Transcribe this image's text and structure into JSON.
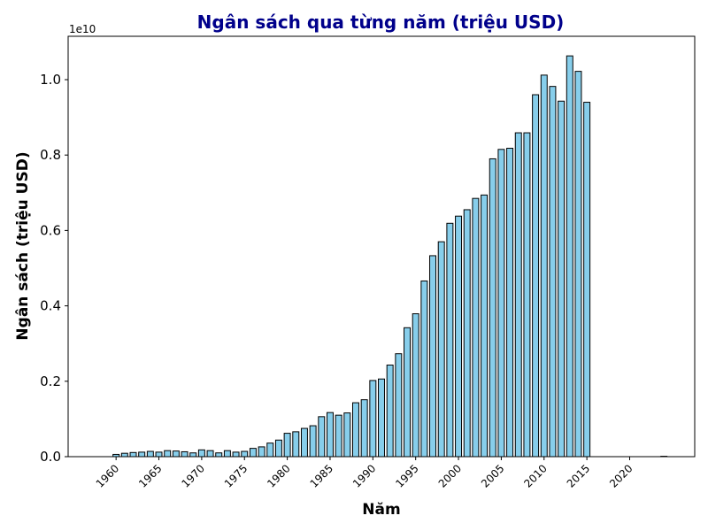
{
  "chart_data": {
    "type": "bar",
    "title": "Ngân sách qua từng năm (triệu USD)",
    "xlabel": "Năm",
    "ylabel": "Ngân sách (triệu USD)",
    "y_offset_label": "1e10",
    "xlim": [
      1954.4,
      2027.6
    ],
    "ylim": [
      0,
      11150000000.0
    ],
    "x_ticks": [
      1960,
      1965,
      1970,
      1975,
      1980,
      1985,
      1990,
      1995,
      2000,
      2005,
      2010,
      2015,
      2020
    ],
    "y_ticks": [
      0,
      2000000000.0,
      4000000000.0,
      6000000000.0,
      8000000000.0,
      10000000000.0
    ],
    "y_tick_labels": [
      "0.0",
      "0.2",
      "0.4",
      "0.6",
      "0.8",
      "1.0"
    ],
    "bar_color": "#87ceeb",
    "edge_color": "#000000",
    "grid": false,
    "x": [
      1960,
      1961,
      1962,
      1963,
      1964,
      1965,
      1966,
      1967,
      1968,
      1969,
      1970,
      1971,
      1972,
      1973,
      1974,
      1975,
      1976,
      1977,
      1978,
      1979,
      1980,
      1981,
      1982,
      1983,
      1984,
      1985,
      1986,
      1987,
      1988,
      1989,
      1990,
      1991,
      1992,
      1993,
      1994,
      1995,
      1996,
      1997,
      1998,
      1999,
      2000,
      2001,
      2002,
      2003,
      2004,
      2005,
      2006,
      2007,
      2008,
      2009,
      2010,
      2011,
      2012,
      2013,
      2014,
      2015,
      2024
    ],
    "values": [
      60000000.0,
      90000000.0,
      110000000.0,
      120000000.0,
      140000000.0,
      120000000.0,
      160000000.0,
      150000000.0,
      130000000.0,
      100000000.0,
      180000000.0,
      160000000.0,
      100000000.0,
      160000000.0,
      120000000.0,
      140000000.0,
      220000000.0,
      260000000.0,
      360000000.0,
      440000000.0,
      620000000.0,
      660000000.0,
      750000000.0,
      820000000.0,
      1060000000.0,
      1170000000.0,
      1100000000.0,
      1160000000.0,
      1430000000.0,
      1510000000.0,
      2020000000.0,
      2060000000.0,
      2430000000.0,
      2730000000.0,
      3420000000.0,
      3790000000.0,
      4660000000.0,
      5330000000.0,
      5700000000.0,
      6190000000.0,
      6380000000.0,
      6550000000.0,
      6850000000.0,
      6940000000.0,
      7900000000.0,
      8150000000.0,
      8180000000.0,
      8590000000.0,
      8590000000.0,
      9600000000.0,
      10120000000.0,
      9820000000.0,
      9430000000.0,
      10630000000.0,
      10220000000.0,
      9400000000.0,
      10000000.0
    ]
  }
}
